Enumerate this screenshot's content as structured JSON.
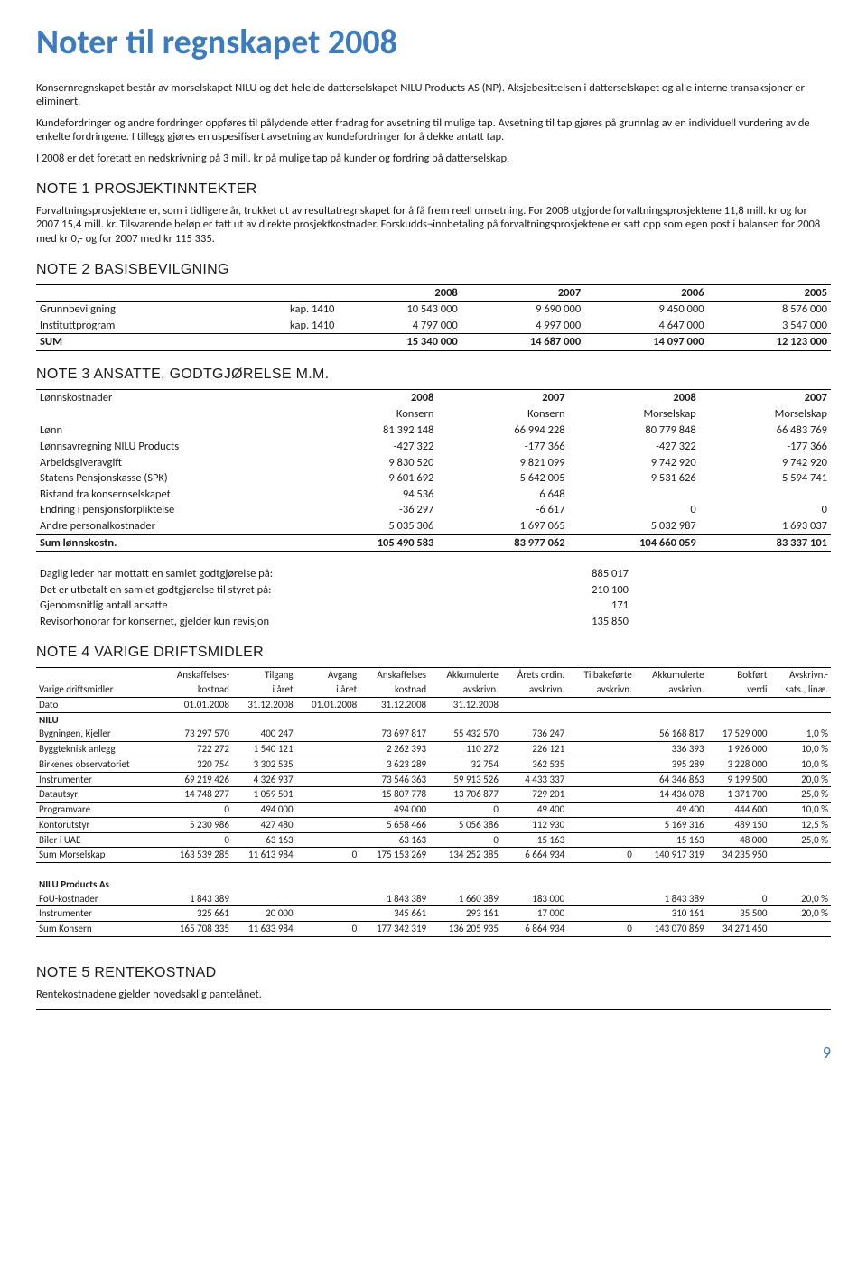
{
  "title": "Noter til regnskapet 2008",
  "intro": {
    "p1": "Konsernregnskapet består av morselskapet NILU og det heleide datterselskapet NILU Products AS (NP). Aksjebesittelsen i datterselskapet og alle interne transaksjoner er eliminert.",
    "p2": "Kundefordringer og andre fordringer oppføres til pålydende etter fradrag for avsetning til mulige tap. Avsetning til tap gjøres på grunnlag av en individuell vurdering av de enkelte fordringene. I tillegg gjøres en uspesifisert avsetning av kundefordringer for å dekke antatt tap.",
    "p3": "I 2008 er det foretatt en nedskrivning på 3 mill. kr på mulige tap på kunder og fordring på datterselskap."
  },
  "note1": {
    "head": "NOTE 1 PROSJEKTINNTEKTER",
    "body": "Forvaltningsprosjektene er, som i tidligere år, trukket ut av resultatregnskapet for å få frem reell omsetning. For 2008 utgjorde forvaltningsprosjektene 11,8 mill. kr og for 2007 15,4 mill. kr. Tilsvarende beløp er tatt ut av direkte prosjektkostnader. Forskudds¬innbetaling på forvaltningsprosjektene er satt opp som egen post i balansen for 2008 med kr 0,- og for 2007 med kr 115 335."
  },
  "note2": {
    "head": "NOTE 2 BASISBEVILGNING",
    "cols": [
      "2008",
      "2007",
      "2006",
      "2005"
    ],
    "rows": [
      {
        "label": "Grunnbevilgning",
        "kap": "kap. 1410",
        "v": [
          "10 543 000",
          "9 690 000",
          "9 450 000",
          "8 576 000"
        ]
      },
      {
        "label": "Instituttprogram",
        "kap": "kap. 1410",
        "v": [
          "4 797 000",
          "4 997 000",
          "4 647 000",
          "3 547 000"
        ]
      }
    ],
    "sum": {
      "label": "SUM",
      "v": [
        "15 340 000",
        "14 687 000",
        "14 097 000",
        "12 123 000"
      ]
    }
  },
  "note3": {
    "head": "NOTE 3 ANSATTE, GODTGJØRELSE M.M.",
    "header1": [
      "2008",
      "2007",
      "2008",
      "2007"
    ],
    "header2": [
      "Konsern",
      "Konsern",
      "Morselskap",
      "Morselskap"
    ],
    "label0": "Lønnskostnader",
    "rows": [
      {
        "label": "Lønn",
        "v": [
          "81 392 148",
          "66 994 228",
          "80 779 848",
          "66 483 769"
        ]
      },
      {
        "label": "Lønnsavregning NILU Products",
        "v": [
          "-427 322",
          "-177 366",
          "-427 322",
          "-177 366"
        ]
      },
      {
        "label": "Arbeidsgiveravgift",
        "v": [
          "9 830 520",
          "9 821 099",
          "9 742 920",
          "9 742 920"
        ]
      },
      {
        "label": "Statens Pensjonskasse (SPK)",
        "v": [
          "9 601 692",
          "5 642 005",
          "9 531 626",
          "5 594 741"
        ]
      },
      {
        "label": "Bistand fra konsernselskapet",
        "v": [
          "94 536",
          "6 648",
          "",
          ""
        ]
      },
      {
        "label": "Endring i pensjonsforpliktelse",
        "v": [
          "-36 297",
          "-6 617",
          "0",
          "0"
        ]
      },
      {
        "label": "Andre personalkostnader",
        "v": [
          "5 035 306",
          "1 697 065",
          "5 032 987",
          "1 693 037"
        ]
      }
    ],
    "sum": {
      "label": "Sum lønnskostn.",
      "v": [
        "105 490 583",
        "83 977 062",
        "104 660 059",
        "83 337 101"
      ]
    },
    "extras": [
      {
        "label": "Daglig leder har mottatt en samlet godtgjørelse på:",
        "val": "885 017"
      },
      {
        "label": "Det er utbetalt en samlet godtgjørelse til styret på:",
        "val": "210 100"
      },
      {
        "label": "Gjenomsnitlig antall ansatte",
        "val": "171"
      },
      {
        "label": "Revisorhonorar for konsernet, gjelder kun revisjon",
        "val": "135 850"
      }
    ]
  },
  "note4": {
    "head": "NOTE 4 VARIGE DRIFTSMIDLER",
    "headers_top": [
      "",
      "Anskaffelses-",
      "Tilgang",
      "Avgang",
      "Anskaffelses",
      "Akkumulerte",
      "Årets ordin.",
      "Tilbakeførte",
      "Akkumulerte",
      "Bokført",
      "Avskrivn.-"
    ],
    "headers_mid": [
      "Varige driftsmidler",
      "kostnad",
      "i året",
      "i året",
      "kostnad",
      "avskrivn.",
      "avskrivn.",
      "avskrivn.",
      "avskrivn.",
      "verdi",
      "sats., linæ."
    ],
    "headers_date": [
      "Dato",
      "01.01.2008",
      "31.12.2008",
      "01.01.2008",
      "31.12.2008",
      "31.12.2008",
      "",
      "",
      "",
      "",
      ""
    ],
    "group1": "NILU",
    "rows1": [
      {
        "label": "Bygningen, Kjeller",
        "v": [
          "73 297 570",
          "400 247",
          "",
          "73 697 817",
          "55 432 570",
          "736 247",
          "",
          "56 168 817",
          "17 529 000",
          "1,0 %"
        ]
      },
      {
        "label": "Byggteknisk anlegg",
        "v": [
          "722 272",
          "1 540 121",
          "",
          "2 262 393",
          "110 272",
          "226 121",
          "",
          "336 393",
          "1 926 000",
          "10,0 %"
        ]
      },
      {
        "label": "Birkenes observatoriet",
        "v": [
          "320 754",
          "3 302 535",
          "",
          "3 623 289",
          "32 754",
          "362 535",
          "",
          "395 289",
          "3 228 000",
          "10,0 %"
        ]
      },
      {
        "label": "Instrumenter",
        "v": [
          "69 219 426",
          "4 326 937",
          "",
          "73 546 363",
          "59 913 526",
          "4 433 337",
          "",
          "64 346 863",
          "9 199 500",
          "20,0 %"
        ]
      },
      {
        "label": "Datautsyr",
        "v": [
          "14 748 277",
          "1 059 501",
          "",
          "15 807 778",
          "13 706 877",
          "729 201",
          "",
          "14 436 078",
          "1 371 700",
          "25,0 %"
        ]
      },
      {
        "label": "Programvare",
        "v": [
          "0",
          "494 000",
          "",
          "494 000",
          "0",
          "49 400",
          "",
          "49 400",
          "444 600",
          "10,0 %"
        ]
      },
      {
        "label": "Kontorutstyr",
        "v": [
          "5 230 986",
          "427 480",
          "",
          "5 658 466",
          "5 056 386",
          "112 930",
          "",
          "5 169 316",
          "489 150",
          "12,5 %"
        ]
      },
      {
        "label": "Biler i UAE",
        "v": [
          "0",
          "63 163",
          "",
          "63 163",
          "0",
          "15 163",
          "",
          "15 163",
          "48 000",
          "25,0 %"
        ]
      }
    ],
    "sum1": {
      "label": "Sum Morselskap",
      "v": [
        "163 539 285",
        "11 613 984",
        "0",
        "175 153 269",
        "134 252 385",
        "6 664 934",
        "0",
        "140 917 319",
        "34 235 950",
        ""
      ]
    },
    "group2": "NILU Products As",
    "rows2": [
      {
        "label": "FoU-kostnader",
        "v": [
          "1 843 389",
          "",
          "",
          "1 843 389",
          "1 660 389",
          "183 000",
          "",
          "1 843 389",
          "0",
          "20,0 %"
        ]
      },
      {
        "label": "Instrumenter",
        "v": [
          "325 661",
          "20 000",
          "",
          "345 661",
          "293 161",
          "17 000",
          "",
          "310 161",
          "35 500",
          "20,0 %"
        ]
      }
    ],
    "sum2": {
      "label": "Sum Konsern",
      "v": [
        "165 708 335",
        "11 633 984",
        "0",
        "177 342 319",
        "136 205 935",
        "6 864 934",
        "0",
        "143 070 869",
        "34 271 450",
        ""
      ]
    }
  },
  "note5": {
    "head": "NOTE 5 RENTEKOSTNAD",
    "body": "Rentekostnadene gjelder hovedsaklig pantelånet."
  },
  "pagenum": "9"
}
